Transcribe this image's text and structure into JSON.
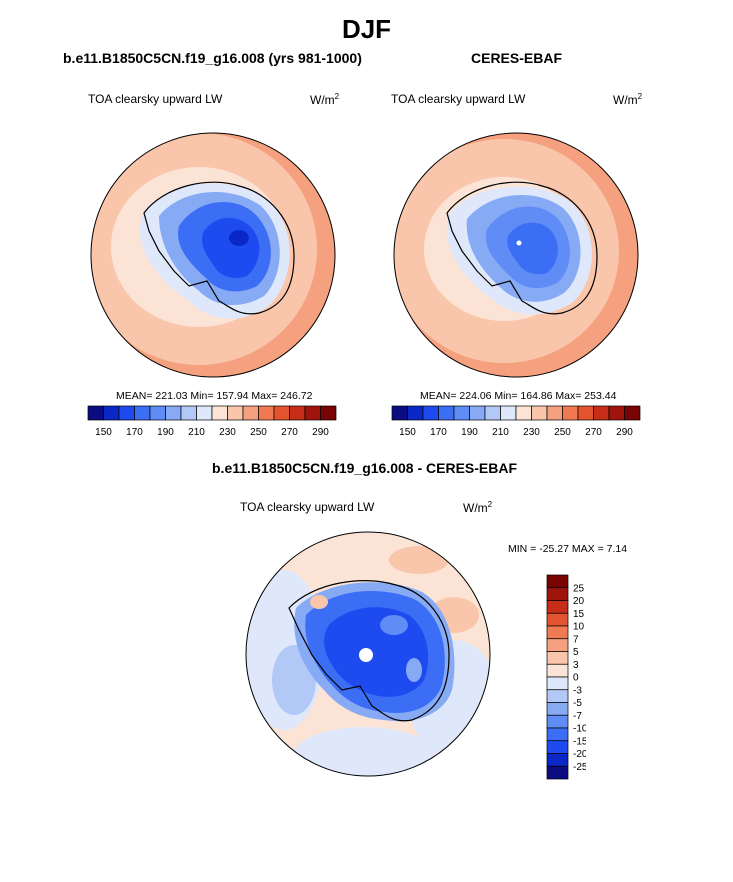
{
  "page": {
    "title": "DJF"
  },
  "panels": [
    {
      "title": "b.e11.B1850C5CN.f19_g16.008 (yrs 981-1000)",
      "variable": "TOA clearsky upward LW",
      "units": "W/m",
      "units_exp": "2",
      "stats": "MEAN= 221.03  Min= 157.94  Max= 246.72"
    },
    {
      "title": "CERES-EBAF",
      "variable": "TOA clearsky upward LW",
      "units": "W/m",
      "units_exp": "2",
      "stats": "MEAN= 224.06  Min= 164.86  Max= 253.44"
    },
    {
      "title": "b.e11.B1850C5CN.f19_g16.008 - CERES-EBAF",
      "variable": "TOA clearsky upward LW",
      "units": "W/m",
      "units_exp": "2",
      "stats": "MIN = -25.27 MAX =   7.14"
    }
  ],
  "chart_data": [
    {
      "type": "heatmap",
      "title": "b.e11.B1850C5CN.f19_g16.008 (yrs 981-1000)",
      "projection": "south-polar-stereographic",
      "variable": "TOA clearsky upward LW",
      "units": "W/m^2",
      "mean": 221.03,
      "min": 157.94,
      "max": 246.72,
      "colorbar": {
        "orientation": "horizontal",
        "levels": [
          150,
          160,
          170,
          180,
          190,
          200,
          210,
          220,
          230,
          240,
          250,
          260,
          270,
          280,
          290
        ],
        "tick_labels": [
          "150",
          "170",
          "190",
          "210",
          "230",
          "250",
          "270",
          "290"
        ],
        "colors": [
          "#0b0b82",
          "#0a28c8",
          "#1e4bf0",
          "#3c6ef5",
          "#5f8cf5",
          "#87aaf5",
          "#b2c8f7",
          "#dfe8fb",
          "#fbe4d6",
          "#f9c6ab",
          "#f5a17f",
          "#f07b52",
          "#e4542f",
          "#c72d18",
          "#a0140e",
          "#7a0403"
        ]
      },
      "field_bands": [
        {
          "lat": -85,
          "value": 158
        },
        {
          "lat": -75,
          "value": 180
        },
        {
          "lat": -70,
          "value": 205
        },
        {
          "lat": -65,
          "value": 218
        },
        {
          "lat": -58,
          "value": 226
        },
        {
          "lat": -52,
          "value": 232
        },
        {
          "lat": -45,
          "value": 237
        },
        {
          "lat": -40,
          "value": 243
        }
      ]
    },
    {
      "type": "heatmap",
      "title": "CERES-EBAF",
      "projection": "south-polar-stereographic",
      "variable": "TOA clearsky upward LW",
      "units": "W/m^2",
      "mean": 224.06,
      "min": 164.86,
      "max": 253.44,
      "colorbar": {
        "orientation": "horizontal",
        "levels": [
          150,
          160,
          170,
          180,
          190,
          200,
          210,
          220,
          230,
          240,
          250,
          260,
          270,
          280,
          290
        ],
        "tick_labels": [
          "150",
          "170",
          "190",
          "210",
          "230",
          "250",
          "270",
          "290"
        ],
        "colors": [
          "#0b0b82",
          "#0a28c8",
          "#1e4bf0",
          "#3c6ef5",
          "#5f8cf5",
          "#87aaf5",
          "#b2c8f7",
          "#dfe8fb",
          "#fbe4d6",
          "#f9c6ab",
          "#f5a17f",
          "#f07b52",
          "#e4542f",
          "#c72d18",
          "#a0140e",
          "#7a0403"
        ]
      },
      "field_bands": [
        {
          "lat": -85,
          "value": 170
        },
        {
          "lat": -75,
          "value": 182
        },
        {
          "lat": -70,
          "value": 210
        },
        {
          "lat": -65,
          "value": 225
        },
        {
          "lat": -58,
          "value": 232
        },
        {
          "lat": -52,
          "value": 238
        },
        {
          "lat": -45,
          "value": 243
        },
        {
          "lat": -40,
          "value": 248
        }
      ]
    },
    {
      "type": "heatmap",
      "title": "b.e11.B1850C5CN.f19_g16.008 - CERES-EBAF",
      "projection": "south-polar-stereographic",
      "variable": "TOA clearsky upward LW",
      "units": "W/m^2",
      "min": -25.27,
      "max": 7.14,
      "colorbar": {
        "orientation": "vertical",
        "labels": [
          "25",
          "20",
          "15",
          "10",
          "7",
          "5",
          "3",
          "0",
          "-3",
          "-5",
          "-7",
          "-10",
          "-15",
          "-20",
          "-25"
        ],
        "colors": [
          "#7a0403",
          "#a0140e",
          "#c72d18",
          "#e4542f",
          "#f07b52",
          "#f5a17f",
          "#f9c6ab",
          "#fbe4d6",
          "#dfe8fb",
          "#b2c8f7",
          "#87aaf5",
          "#5f8cf5",
          "#3c6ef5",
          "#1e4bf0",
          "#0a28c8",
          "#0b0b82"
        ]
      },
      "field_bands": [
        {
          "lat": -85,
          "value": -20
        },
        {
          "lat": -75,
          "value": -12
        },
        {
          "lat": -68,
          "value": -4
        },
        {
          "lat": -60,
          "value": 1
        },
        {
          "lat": -50,
          "value": -1
        },
        {
          "lat": -40,
          "value": 2
        }
      ]
    }
  ]
}
